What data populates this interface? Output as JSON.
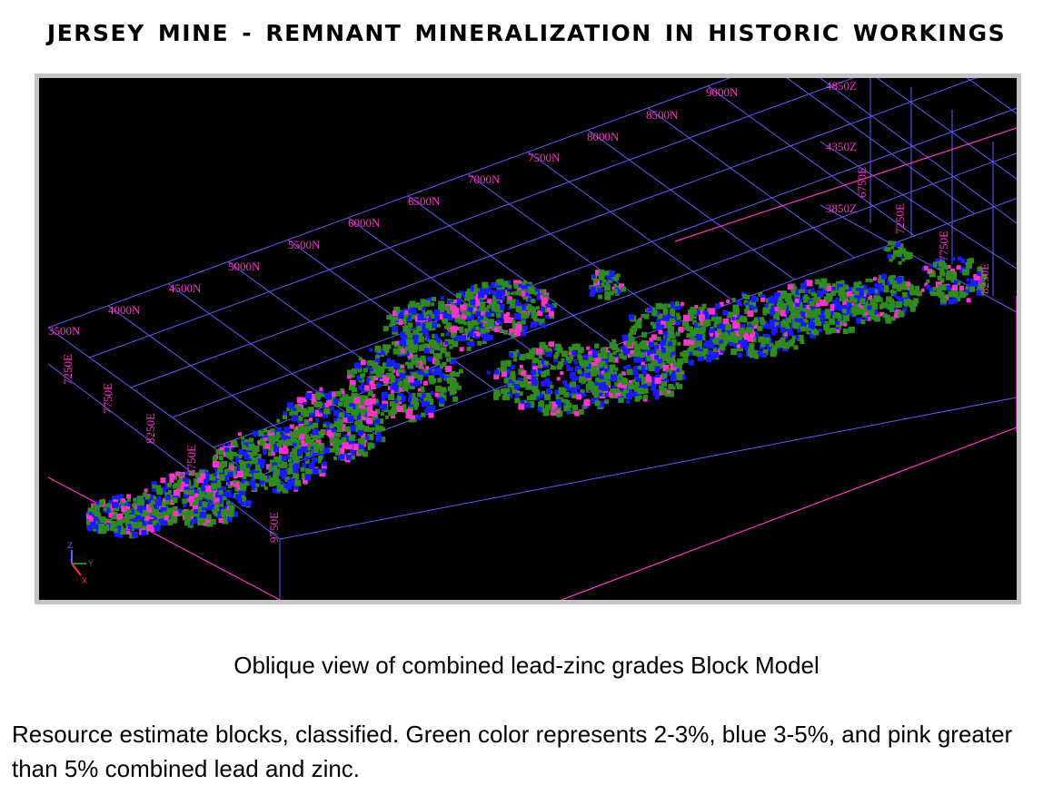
{
  "title": "JERSEY MINE - REMNANT MINERALIZATION IN HISTORIC WORKINGS",
  "viewer": {
    "northing_labels": [
      "3500N",
      "4000N",
      "4500N",
      "5000N",
      "5500N",
      "6000N",
      "6500N",
      "7000N",
      "7500N",
      "8000N",
      "8500N",
      "9000N"
    ],
    "easting_labels_left": [
      "7250E",
      "7750E",
      "8250E",
      "8750E",
      "9750E"
    ],
    "elevation_labels": [
      "4850Z",
      "4350Z",
      "3850Z"
    ],
    "easting_labels_right": [
      "6750E",
      "7250E",
      "7750E",
      "8250E"
    ],
    "axis_triad": {
      "z": "Z",
      "y": "Y",
      "x": "X"
    },
    "colors": {
      "grid": "#5c5cff",
      "box_edges": "#ff33cc",
      "labels": "#ff33cc",
      "grade_2_3": "#2e8b1e",
      "grade_3_5": "#1a1aff",
      "grade_gt_5": "#ff33cc"
    }
  },
  "caption": "Oblique view of combined lead-zinc grades Block Model",
  "description": "Resource estimate blocks, classified.  Green color represents 2-3%, blue 3-5%, and pink greater than 5% combined lead and zinc."
}
